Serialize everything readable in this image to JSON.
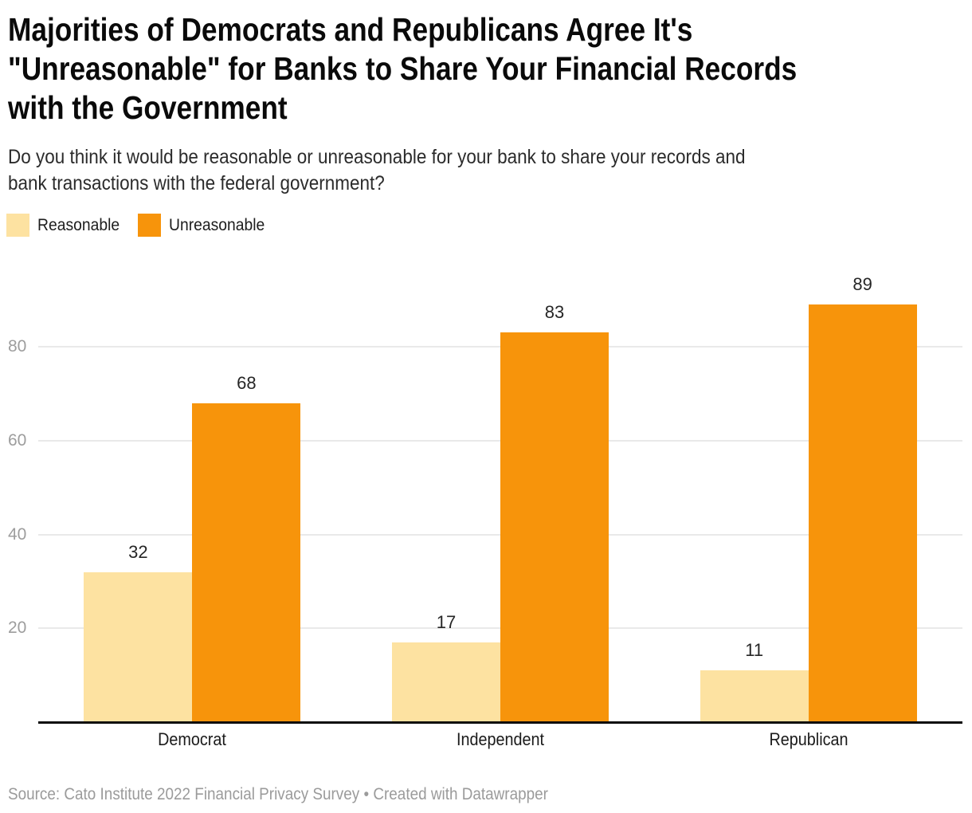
{
  "header": {
    "title_lines": [
      "Majorities of Democrats and Republicans Agree It's",
      "\"Unreasonable\" for Banks to Share Your Financial Records",
      "with the Government"
    ],
    "subtitle_lines": [
      "Do you think it would be reasonable or unreasonable for your bank to share your records and",
      "bank transactions with the federal government?"
    ]
  },
  "legend": {
    "items": [
      {
        "label": "Reasonable",
        "color": "#fde2a1"
      },
      {
        "label": "Unreasonable",
        "color": "#f7940b"
      }
    ]
  },
  "chart_data": {
    "type": "bar",
    "title": "Majorities of Democrats and Republicans Agree It's \"Unreasonable\" for Banks to Share Your Financial Records with the Government",
    "subtitle": "Do you think it would be reasonable or unreasonable for your bank to share your records and bank transactions with the federal government?",
    "categories": [
      "Democrat",
      "Independent",
      "Republican"
    ],
    "series": [
      {
        "name": "Reasonable",
        "color": "#fde2a1",
        "values": [
          32,
          17,
          11
        ]
      },
      {
        "name": "Unreasonable",
        "color": "#f7940b",
        "values": [
          68,
          83,
          89
        ]
      }
    ],
    "value_labels": true,
    "yticks": [
      20,
      40,
      60,
      80
    ],
    "ylim": [
      0,
      100
    ],
    "xlabel": "",
    "ylabel": "",
    "grid": true,
    "legend_position": "top-left"
  },
  "footer": {
    "source_text": "Source: Cato Institute 2022 Financial Privacy Survey",
    "separator": " • ",
    "credit_text": "Created with Datawrapper"
  },
  "colors": {
    "background": "#ffffff",
    "title_text": "#0a0a0a",
    "subtitle_text": "#2b2b2b",
    "grid": "#e9e9e9",
    "axis_line": "#0c0c0c",
    "tick_label": "#9d9d9d",
    "category_label": "#1b1b1b",
    "value_label": "#262626",
    "footer_text": "#9b9b9b"
  }
}
